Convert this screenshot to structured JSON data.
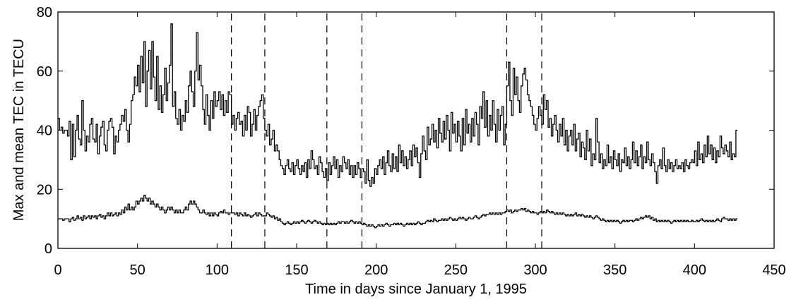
{
  "chart_data": {
    "type": "step",
    "xlabel": "Time in days since January 1, 1995",
    "ylabel": "Max and mean TEC in TECU",
    "xlim": [
      0,
      450
    ],
    "xticks": [
      0,
      50,
      100,
      150,
      200,
      250,
      300,
      350,
      400,
      450
    ],
    "ylim": [
      0,
      80
    ],
    "yticks": [
      0,
      20,
      40,
      60,
      80
    ],
    "vlines": [
      109,
      130,
      169,
      191,
      282,
      304
    ],
    "x": [
      0,
      1,
      2,
      3,
      4,
      5,
      6,
      7,
      8,
      9,
      10,
      11,
      12,
      13,
      14,
      15,
      16,
      17,
      18,
      19,
      20,
      21,
      22,
      23,
      24,
      25,
      26,
      27,
      28,
      29,
      30,
      31,
      32,
      33,
      34,
      35,
      36,
      37,
      38,
      39,
      40,
      41,
      42,
      43,
      44,
      45,
      46,
      47,
      48,
      49,
      50,
      51,
      52,
      53,
      54,
      55,
      56,
      57,
      58,
      59,
      60,
      61,
      62,
      63,
      64,
      65,
      66,
      67,
      68,
      69,
      70,
      71,
      72,
      73,
      74,
      75,
      76,
      77,
      78,
      79,
      80,
      81,
      82,
      83,
      84,
      85,
      86,
      87,
      88,
      89,
      90,
      91,
      92,
      93,
      94,
      95,
      96,
      97,
      98,
      99,
      100,
      101,
      102,
      103,
      104,
      105,
      106,
      107,
      108,
      109,
      110,
      111,
      112,
      113,
      114,
      115,
      116,
      117,
      118,
      119,
      120,
      121,
      122,
      123,
      124,
      125,
      126,
      127,
      128,
      129,
      130,
      131,
      132,
      133,
      134,
      135,
      136,
      137,
      138,
      139,
      140,
      141,
      142,
      143,
      144,
      145,
      146,
      147,
      148,
      149,
      150,
      151,
      152,
      153,
      154,
      155,
      156,
      157,
      158,
      159,
      160,
      161,
      162,
      163,
      164,
      165,
      166,
      167,
      168,
      169,
      170,
      171,
      172,
      173,
      174,
      175,
      176,
      177,
      178,
      179,
      180,
      181,
      182,
      183,
      184,
      185,
      186,
      187,
      188,
      189,
      190,
      191,
      192,
      193,
      194,
      195,
      196,
      197,
      198,
      199,
      200,
      201,
      202,
      203,
      204,
      205,
      206,
      207,
      208,
      209,
      210,
      211,
      212,
      213,
      214,
      215,
      216,
      217,
      218,
      219,
      220,
      221,
      222,
      223,
      224,
      225,
      226,
      227,
      228,
      229,
      230,
      231,
      232,
      233,
      234,
      235,
      236,
      237,
      238,
      239,
      240,
      241,
      242,
      243,
      244,
      245,
      246,
      247,
      248,
      249,
      250,
      251,
      252,
      253,
      254,
      255,
      256,
      257,
      258,
      259,
      260,
      261,
      262,
      263,
      264,
      265,
      266,
      267,
      268,
      269,
      270,
      271,
      272,
      273,
      274,
      275,
      276,
      277,
      278,
      279,
      280,
      281,
      282,
      283,
      284,
      285,
      286,
      287,
      288,
      289,
      290,
      291,
      292,
      293,
      294,
      295,
      296,
      297,
      298,
      299,
      300,
      301,
      302,
      303,
      304,
      305,
      306,
      307,
      308,
      309,
      310,
      311,
      312,
      313,
      314,
      315,
      316,
      317,
      318,
      319,
      320,
      321,
      322,
      323,
      324,
      325,
      326,
      327,
      328,
      329,
      330,
      331,
      332,
      333,
      334,
      335,
      336,
      337,
      338,
      339,
      340,
      341,
      342,
      343,
      344,
      345,
      346,
      347,
      348,
      349,
      350,
      351,
      352,
      353,
      354,
      355,
      356,
      357,
      358,
      359,
      360,
      361,
      362,
      363,
      364,
      365,
      366,
      367,
      368,
      369,
      370,
      371,
      372,
      373,
      374,
      375,
      376,
      377,
      378,
      379,
      380,
      381,
      382,
      383,
      384,
      385,
      386,
      387,
      388,
      389,
      390,
      391,
      392,
      393,
      394,
      395,
      396,
      397,
      398,
      399,
      400,
      401,
      402,
      403,
      404,
      405,
      406,
      407,
      408,
      409,
      410,
      411,
      412,
      413,
      414,
      415,
      416,
      417,
      418,
      419,
      420,
      421,
      422,
      423,
      424,
      425,
      426
    ],
    "series": [
      {
        "color": "#000000",
        "values": [
          44,
          40,
          41,
          39,
          40,
          40,
          38,
          43,
          30,
          42,
          31,
          40,
          45,
          37,
          35,
          50,
          40,
          33,
          38,
          36,
          42,
          44,
          37,
          36,
          42,
          32,
          38,
          41,
          43,
          35,
          33,
          40,
          43,
          44,
          41,
          32,
          38,
          36,
          40,
          42,
          45,
          43,
          47,
          40,
          36,
          42,
          50,
          52,
          58,
          55,
          62,
          53,
          65,
          56,
          70,
          48,
          60,
          67,
          54,
          70,
          58,
          50,
          65,
          47,
          55,
          46,
          52,
          61,
          50,
          56,
          62,
          76,
          48,
          53,
          44,
          42,
          47,
          40,
          45,
          43,
          50,
          46,
          55,
          60,
          53,
          48,
          60,
          73,
          57,
          62,
          55,
          47,
          42,
          52,
          45,
          40,
          50,
          44,
          53,
          48,
          50,
          53,
          47,
          52,
          45,
          50,
          46,
          53,
          52,
          42,
          45,
          40,
          44,
          46,
          42,
          43,
          38,
          45,
          40,
          48,
          46,
          38,
          42,
          47,
          40,
          45,
          48,
          50,
          52,
          44,
          40,
          38,
          42,
          35,
          37,
          40,
          33,
          35,
          33,
          30,
          28,
          27,
          25,
          28,
          30,
          27,
          26,
          29,
          25,
          28,
          30,
          27,
          25,
          28,
          26,
          29,
          24,
          30,
          27,
          33,
          30,
          27,
          28,
          25,
          31,
          29,
          26,
          24,
          27,
          23,
          29,
          25,
          28,
          31,
          27,
          30,
          24,
          28,
          26,
          31,
          29,
          27,
          30,
          25,
          28,
          24,
          28,
          25,
          29,
          27,
          24,
          27,
          26,
          22,
          30,
          23,
          21,
          24,
          22,
          27,
          25,
          28,
          30,
          27,
          31,
          25,
          29,
          33,
          28,
          26,
          32,
          27,
          31,
          26,
          35,
          29,
          33,
          28,
          31,
          27,
          30,
          33,
          28,
          35,
          31,
          34,
          29,
          24,
          32,
          38,
          33,
          30,
          41,
          35,
          37,
          42,
          36,
          40,
          34,
          44,
          39,
          36,
          43,
          37,
          45,
          40,
          33,
          46,
          39,
          42,
          36,
          43,
          38,
          33,
          44,
          35,
          47,
          39,
          42,
          36,
          44,
          38,
          46,
          42,
          35,
          48,
          44,
          53,
          41,
          50,
          38,
          45,
          40,
          50,
          42,
          36,
          47,
          40,
          45,
          48,
          35,
          42,
          55,
          63,
          50,
          45,
          61,
          52,
          58,
          50,
          46,
          55,
          59,
          61,
          57,
          52,
          50,
          48,
          45,
          42,
          40,
          44,
          48,
          45,
          42,
          52,
          47,
          50,
          41,
          44,
          38,
          42,
          45,
          40,
          36,
          42,
          38,
          44,
          35,
          40,
          33,
          38,
          40,
          35,
          42,
          33,
          37,
          39,
          31,
          36,
          34,
          30,
          40,
          33,
          37,
          28,
          32,
          30,
          44,
          36,
          29,
          32,
          27,
          30,
          28,
          35,
          29,
          31,
          27,
          33,
          30,
          28,
          32,
          26,
          30,
          29,
          34,
          28,
          31,
          27,
          30,
          36,
          29,
          33,
          28,
          31,
          35,
          27,
          31,
          29,
          36,
          30,
          28,
          32,
          29,
          26,
          22,
          28,
          30,
          27,
          34,
          28,
          26,
          30,
          27,
          29,
          26,
          28,
          30,
          27,
          28,
          27,
          29,
          26,
          30,
          28,
          27,
          29,
          30,
          29,
          33,
          28,
          36,
          30,
          32,
          29,
          35,
          31,
          38,
          32,
          35,
          30,
          34,
          29,
          33,
          31,
          38,
          34,
          32,
          35,
          33,
          31,
          36,
          30,
          32,
          31,
          40
        ]
      },
      {
        "color": "#000000",
        "values": [
          10,
          10,
          10,
          9.5,
          10,
          10,
          10,
          9,
          10,
          10.5,
          9.5,
          10,
          11,
          10,
          10.5,
          9.5,
          11,
          10,
          10.5,
          11,
          10,
          11,
          10.5,
          11,
          10,
          11,
          11.5,
          10.5,
          11,
          10,
          11,
          12,
          11,
          12,
          11,
          11.5,
          12,
          11,
          12,
          11.5,
          13,
          12,
          14,
          13,
          15,
          13,
          14,
          13,
          14,
          16,
          15,
          16,
          17,
          16,
          18,
          17,
          16,
          17,
          15,
          16,
          15,
          14,
          15,
          14,
          13,
          14,
          13,
          12,
          13,
          14,
          13,
          14,
          13,
          12,
          13,
          12,
          13,
          12,
          12,
          13,
          14,
          13,
          15,
          16,
          15,
          16,
          15,
          14,
          13,
          12,
          12,
          13,
          12,
          11.5,
          12,
          11,
          12,
          11,
          12,
          11.5,
          11,
          12,
          12.5,
          12,
          13,
          12,
          12,
          11.5,
          12,
          12,
          12,
          11.5,
          12,
          11,
          12,
          11.5,
          11,
          12,
          11,
          11.5,
          11,
          10.5,
          11,
          11.5,
          12,
          11,
          12,
          11.5,
          11,
          11,
          11,
          12,
          11.5,
          11,
          10.5,
          11,
          10,
          10.5,
          9.5,
          10,
          9,
          8.5,
          8,
          8.5,
          9,
          8.5,
          8,
          8.5,
          9,
          8.5,
          9,
          8.5,
          9,
          9.5,
          9,
          8.5,
          9,
          9.5,
          9,
          8.5,
          9,
          9.5,
          9,
          8.5,
          9,
          8.5,
          8,
          8.5,
          8,
          8.5,
          8,
          8.5,
          8,
          8.5,
          8,
          8.5,
          9,
          8.5,
          9,
          9,
          8.5,
          9,
          8.5,
          9,
          9.5,
          9,
          8.5,
          9,
          8.5,
          9,
          8.5,
          8,
          8.5,
          8,
          7.5,
          8,
          7.5,
          8,
          7.5,
          7,
          7.5,
          8,
          7.5,
          8,
          7.5,
          8,
          8.5,
          8,
          7.5,
          8,
          8,
          8.5,
          8,
          8.5,
          8,
          8.5,
          8,
          7.5,
          8,
          8.5,
          8,
          8.5,
          8,
          8.5,
          8,
          8.5,
          9,
          8.5,
          8,
          8.5,
          8.5,
          9,
          9.5,
          9,
          9.5,
          9,
          10,
          9.5,
          9,
          9.5,
          9.5,
          10,
          9.5,
          10,
          9.5,
          10,
          10.5,
          10,
          9.5,
          10,
          9.5,
          10,
          10.5,
          10,
          10.5,
          10,
          9.5,
          10,
          10.5,
          10,
          10,
          10.5,
          11,
          10.5,
          10,
          10.5,
          11,
          11.5,
          11,
          11.5,
          11.5,
          12,
          11.5,
          12,
          11.5,
          12,
          11.5,
          12,
          11.5,
          12,
          12,
          12.5,
          13,
          12.5,
          13,
          12,
          12.5,
          13,
          12.5,
          13,
          13,
          13.5,
          13,
          13.5,
          12.5,
          13,
          12.5,
          12,
          12.5,
          12,
          12,
          11.5,
          12,
          12.5,
          12,
          12.5,
          12,
          13,
          12.5,
          12,
          12.5,
          12,
          11.5,
          12,
          11.5,
          12,
          11.5,
          12,
          11.5,
          11,
          11.5,
          11,
          11.5,
          11,
          11.5,
          12,
          11,
          11.5,
          11,
          11.5,
          11,
          10.5,
          11,
          10.5,
          11,
          10.5,
          10,
          10.5,
          11,
          10.5,
          10,
          9.5,
          10,
          9.5,
          9,
          9.5,
          9,
          9.5,
          9,
          9.5,
          9,
          9.5,
          9,
          8.5,
          9,
          9.5,
          9,
          9.5,
          9,
          9.5,
          9.5,
          9,
          9.5,
          10,
          9.5,
          10,
          10.5,
          10,
          10.5,
          11,
          10.5,
          11,
          10,
          10.5,
          9.5,
          10,
          9,
          9.5,
          9,
          9.5,
          9,
          9.5,
          9,
          9.5,
          9,
          8.5,
          9,
          9.5,
          9,
          9.5,
          9,
          9.5,
          9,
          9.5,
          9,
          9.5,
          9,
          9,
          9.5,
          9,
          9,
          9.5,
          9,
          9.5,
          10,
          9.5,
          9,
          9.5,
          9,
          9.5,
          9,
          9.5,
          9,
          9.5,
          10,
          9.5,
          9,
          10,
          10.5,
          10,
          10,
          9.5,
          10,
          9.5,
          10,
          9.5,
          10
        ]
      }
    ]
  }
}
